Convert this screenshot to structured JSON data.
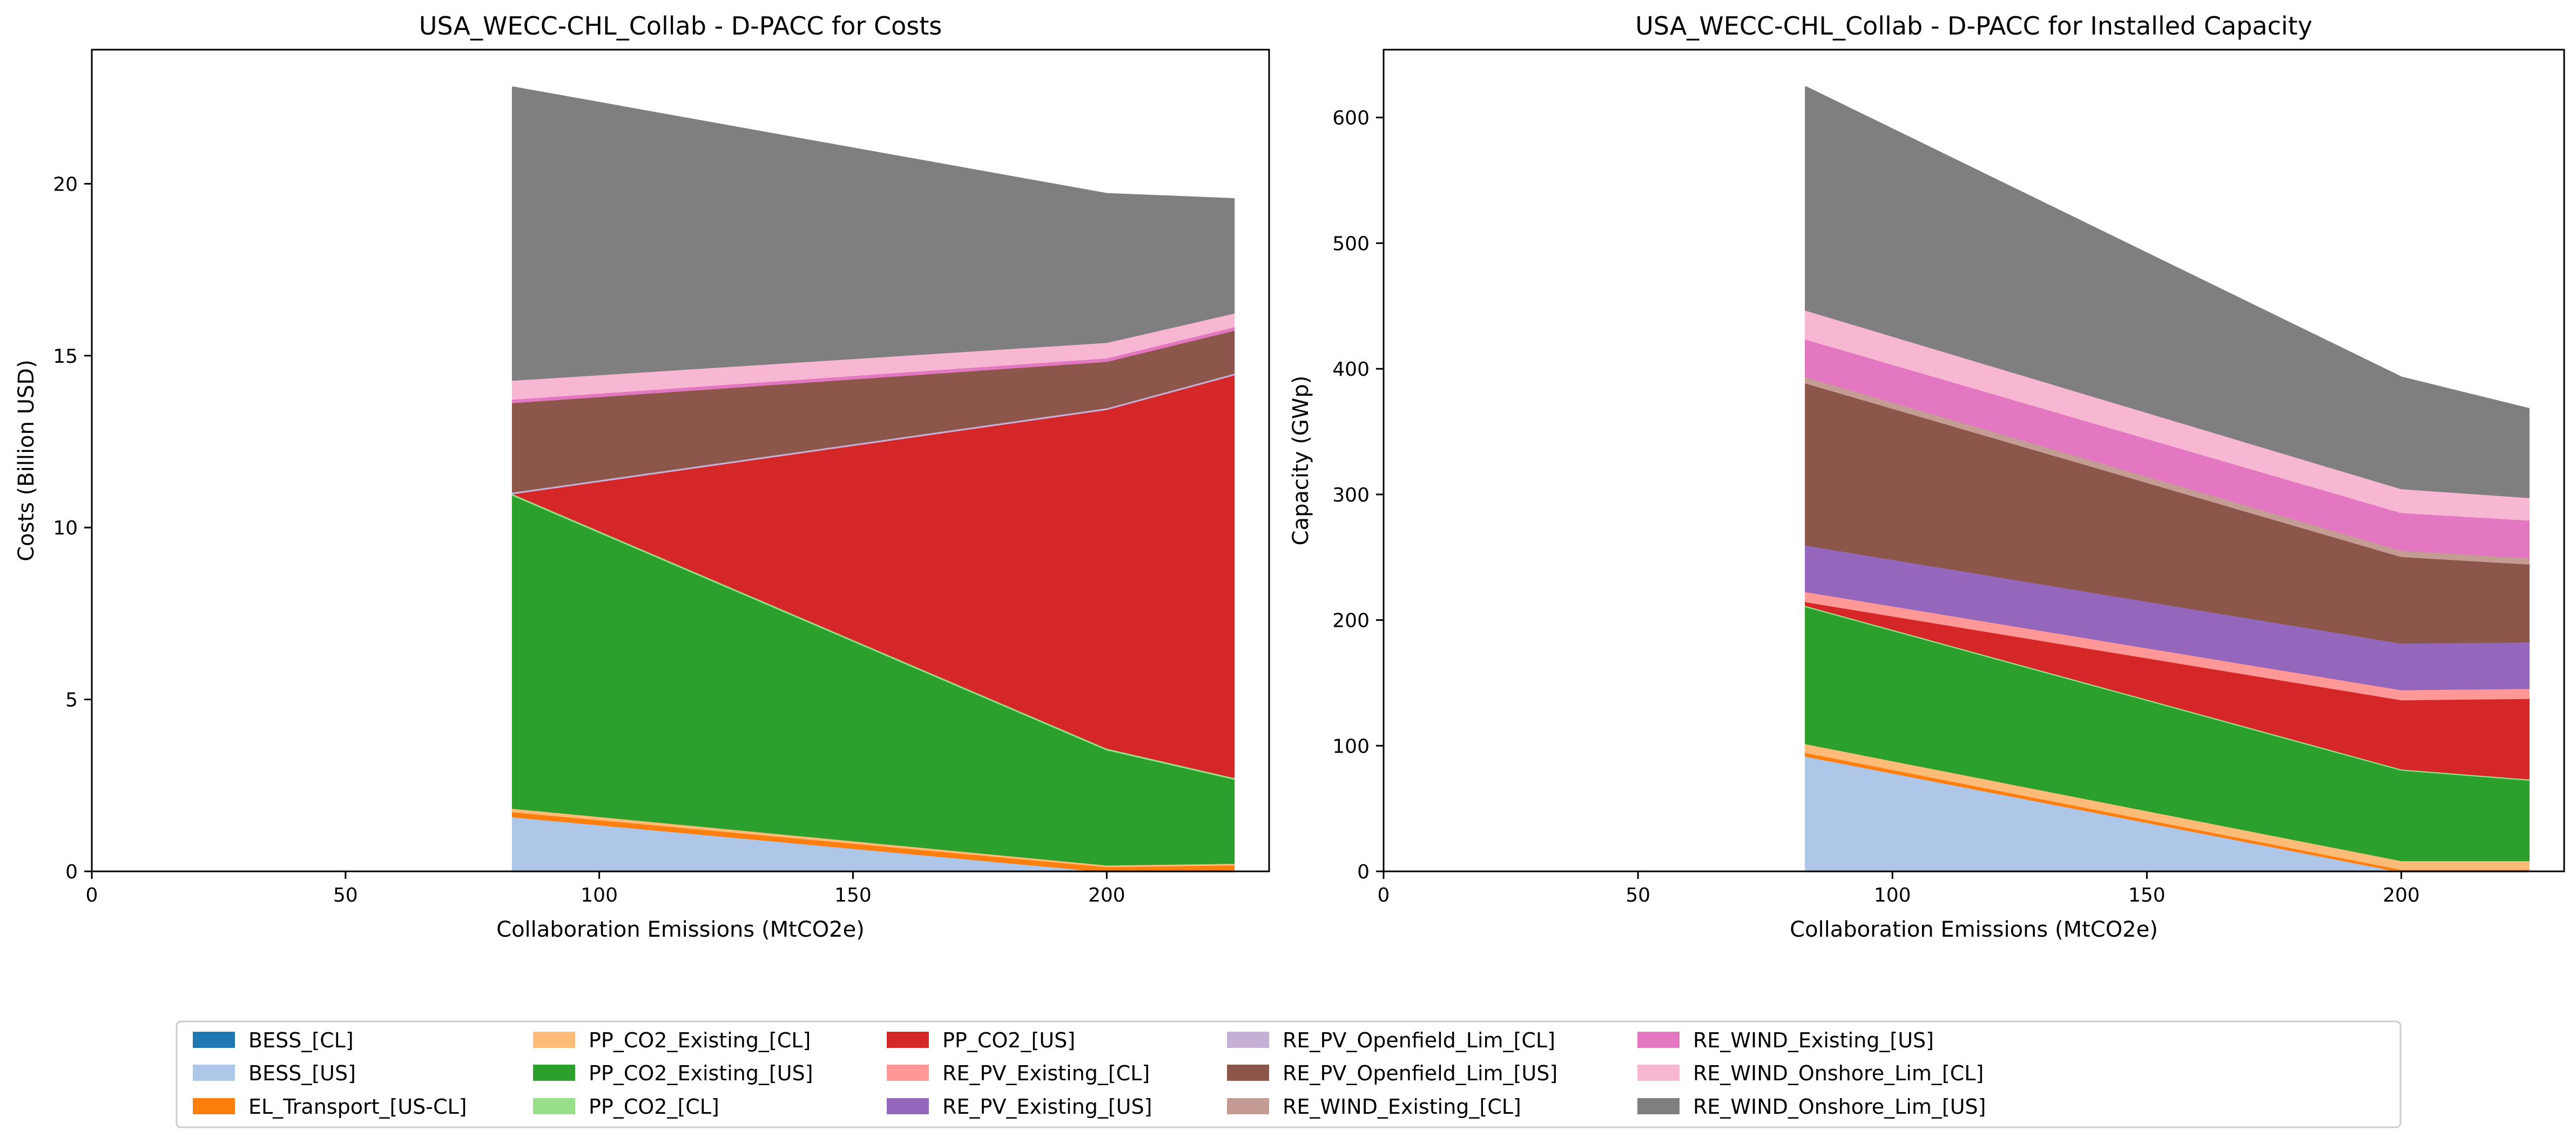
{
  "chart_data": [
    {
      "type": "area",
      "stacked": true,
      "title": "USA_WECC-CHL_Collab - D-PACC for Costs",
      "xlabel": "Collaboration Emissions (MtCO2e)",
      "ylabel": "Costs (Billion USD)",
      "xlim": [
        0,
        232
      ],
      "ylim": [
        0,
        23.9
      ],
      "xticks": [
        0,
        50,
        100,
        150,
        200
      ],
      "yticks": [
        0,
        5,
        10,
        15,
        20
      ],
      "grid": false,
      "x": [
        83,
        200,
        225
      ],
      "series": [
        {
          "name": "BESS_[CL]",
          "values": [
            0,
            0,
            0
          ]
        },
        {
          "name": "BESS_[US]",
          "values": [
            1.6,
            0,
            0
          ]
        },
        {
          "name": "EL_Transport_[US-CL]",
          "values": [
            0.15,
            0.15,
            0.2
          ]
        },
        {
          "name": "PP_CO2_Existing_[CL]",
          "values": [
            0.1,
            0.05,
            0.05
          ]
        },
        {
          "name": "PP_CO2_Existing_[US]",
          "values": [
            9.1,
            3.35,
            2.45
          ]
        },
        {
          "name": "PP_CO2_[CL]",
          "values": [
            0.05,
            0.05,
            0.05
          ]
        },
        {
          "name": "PP_CO2_[US]",
          "values": [
            0,
            9.85,
            11.7
          ]
        },
        {
          "name": "RE_PV_Existing_[CL]",
          "values": [
            0,
            0,
            0
          ]
        },
        {
          "name": "RE_PV_Existing_[US]",
          "values": [
            0,
            0,
            0
          ]
        },
        {
          "name": "RE_PV_Openfield_Lim_[CL]",
          "values": [
            0.05,
            0.05,
            0.05
          ]
        },
        {
          "name": "RE_PV_Openfield_Lim_[US]",
          "values": [
            2.6,
            1.35,
            1.25
          ]
        },
        {
          "name": "RE_WIND_Existing_[CL]",
          "values": [
            0,
            0,
            0
          ]
        },
        {
          "name": "RE_WIND_Existing_[US]",
          "values": [
            0.1,
            0.1,
            0.1
          ]
        },
        {
          "name": "RE_WIND_Onshore_Lim_[CL]",
          "values": [
            0.55,
            0.45,
            0.4
          ]
        },
        {
          "name": "RE_WIND_Onshore_Lim_[US]",
          "values": [
            8.5,
            4.3,
            3.3
          ]
        }
      ]
    },
    {
      "type": "area",
      "stacked": true,
      "title": "USA_WECC-CHL_Collab - D-PACC for Installed Capacity",
      "xlabel": "Collaboration Emissions (MtCO2e)",
      "ylabel": "Capacity (GWp)",
      "xlim": [
        0,
        232
      ],
      "ylim": [
        0,
        654
      ],
      "xticks": [
        0,
        50,
        100,
        150,
        200
      ],
      "yticks": [
        0,
        100,
        200,
        300,
        400,
        500,
        600
      ],
      "grid": false,
      "x": [
        83,
        200,
        225
      ],
      "series": [
        {
          "name": "BESS_[CL]",
          "values": [
            0,
            0,
            0
          ]
        },
        {
          "name": "BESS_[US]",
          "values": [
            92,
            0,
            0
          ]
        },
        {
          "name": "EL_Transport_[US-CL]",
          "values": [
            3,
            2,
            2
          ]
        },
        {
          "name": "PP_CO2_Existing_[CL]",
          "values": [
            7,
            7,
            7
          ]
        },
        {
          "name": "PP_CO2_Existing_[US]",
          "values": [
            109,
            72,
            64
          ]
        },
        {
          "name": "PP_CO2_[CL]",
          "values": [
            1,
            1,
            1
          ]
        },
        {
          "name": "PP_CO2_[US]",
          "values": [
            3,
            55,
            64
          ]
        },
        {
          "name": "RE_PV_Existing_[CL]",
          "values": [
            8,
            8,
            8
          ]
        },
        {
          "name": "RE_PV_Existing_[US]",
          "values": [
            37,
            37,
            37
          ]
        },
        {
          "name": "RE_PV_Openfield_Lim_[CL]",
          "values": [
            0,
            0,
            0
          ]
        },
        {
          "name": "RE_PV_Openfield_Lim_[US]",
          "values": [
            129,
            69,
            62
          ]
        },
        {
          "name": "RE_WIND_Existing_[CL]",
          "values": [
            5,
            5,
            5
          ]
        },
        {
          "name": "RE_WIND_Existing_[US]",
          "values": [
            30,
            30,
            30
          ]
        },
        {
          "name": "RE_WIND_Onshore_Lim_[CL]",
          "values": [
            23,
            19,
            18
          ]
        },
        {
          "name": "RE_WIND_Onshore_Lim_[US]",
          "values": [
            177,
            88,
            70
          ]
        }
      ]
    }
  ],
  "legend": {
    "placement": "bottom",
    "columns": 6,
    "entries": [
      {
        "name": "BESS_[CL]",
        "color": "#1f77b4"
      },
      {
        "name": "BESS_[US]",
        "color": "#aec7e8"
      },
      {
        "name": "EL_Transport_[US-CL]",
        "color": "#ff7f0e"
      },
      {
        "name": "PP_CO2_Existing_[CL]",
        "color": "#ffbb78"
      },
      {
        "name": "PP_CO2_Existing_[US]",
        "color": "#2ca02c"
      },
      {
        "name": "PP_CO2_[CL]",
        "color": "#98df8a"
      },
      {
        "name": "PP_CO2_[US]",
        "color": "#d62728"
      },
      {
        "name": "RE_PV_Existing_[CL]",
        "color": "#ff9896"
      },
      {
        "name": "RE_PV_Existing_[US]",
        "color": "#9467bd"
      },
      {
        "name": "RE_PV_Openfield_Lim_[CL]",
        "color": "#c5b0d5"
      },
      {
        "name": "RE_PV_Openfield_Lim_[US]",
        "color": "#8c564b"
      },
      {
        "name": "RE_WIND_Existing_[CL]",
        "color": "#c49c94"
      },
      {
        "name": "RE_WIND_Existing_[US]",
        "color": "#e377c2"
      },
      {
        "name": "RE_WIND_Onshore_Lim_[CL]",
        "color": "#f7b6d2"
      },
      {
        "name": "RE_WIND_Onshore_Lim_[US]",
        "color": "#7f7f7f"
      }
    ]
  }
}
